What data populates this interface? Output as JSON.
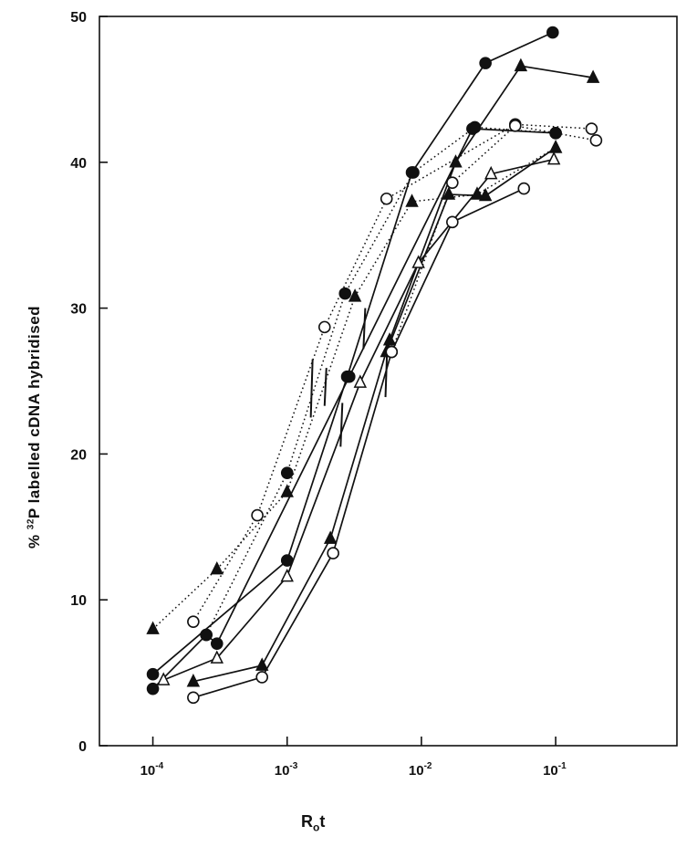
{
  "chart_data": {
    "type": "line",
    "xscale": "log",
    "xlim": [
      4e-05,
      0.8
    ],
    "ylim": [
      0,
      50
    ],
    "yticks": [
      0,
      10,
      20,
      30,
      40,
      50
    ],
    "xticks": [
      {
        "value": 0.0001,
        "base": "10",
        "exp": "-4"
      },
      {
        "value": 0.001,
        "base": "10",
        "exp": "-3"
      },
      {
        "value": 0.01,
        "base": "10",
        "exp": "-2"
      },
      {
        "value": 0.1,
        "base": "10",
        "exp": "-1"
      }
    ],
    "ylabel_prefix": "% ",
    "ylabel_sup": "32",
    "ylabel_main": "P labelled cDNA hybridised",
    "xlabel_main": "R",
    "xlabel_sub": "o",
    "xlabel_tail": "t",
    "grid": false,
    "series": [
      {
        "marker": "filled-circle",
        "linestyle": "solid",
        "points": [
          [
            0.0001,
            4.9
          ],
          [
            0.001,
            12.7
          ],
          [
            0.0028,
            25.3
          ],
          [
            0.0085,
            39.3
          ],
          [
            0.03,
            46.8
          ],
          [
            0.095,
            48.9
          ]
        ]
      },
      {
        "marker": "filled-triangle",
        "linestyle": "solid",
        "points": [
          [
            0.0002,
            4.4
          ],
          [
            0.00065,
            5.5
          ],
          [
            0.0021,
            14.2
          ],
          [
            0.0058,
            27.8
          ],
          [
            0.018,
            40.0
          ],
          [
            0.055,
            46.6
          ],
          [
            0.19,
            45.8
          ]
        ]
      },
      {
        "marker": "filled-circle",
        "linestyle": "solid",
        "points": [
          [
            0.0001,
            3.9
          ],
          [
            0.00025,
            7.6
          ],
          [
            0.0003,
            7.0
          ],
          [
            0.0029,
            25.3
          ],
          [
            0.024,
            42.3
          ],
          [
            0.1,
            42.0
          ]
        ]
      },
      {
        "marker": "open-circle",
        "linestyle": "solid",
        "points": [
          [
            0.0002,
            3.3
          ],
          [
            0.00065,
            4.7
          ],
          [
            0.0022,
            13.2
          ],
          [
            0.006,
            27.0
          ],
          [
            0.017,
            35.9
          ],
          [
            0.058,
            38.2
          ]
        ]
      },
      {
        "marker": "open-triangle",
        "linestyle": "solid",
        "points": [
          [
            0.00012,
            4.5
          ],
          [
            0.0003,
            6.0
          ],
          [
            0.001,
            11.6
          ],
          [
            0.0035,
            24.9
          ],
          [
            0.0095,
            33.1
          ],
          [
            0.033,
            39.2
          ],
          [
            0.097,
            40.2
          ]
        ]
      },
      {
        "marker": "filled-triangle",
        "linestyle": "solid",
        "points": [
          [
            0.0055,
            27.0
          ],
          [
            0.016,
            37.8
          ],
          [
            0.03,
            37.7
          ],
          [
            0.1,
            41.0
          ]
        ]
      },
      {
        "marker": "filled-triangle",
        "linestyle": "dotted",
        "points": [
          [
            0.0001,
            8.0
          ],
          [
            0.0003,
            12.1
          ],
          [
            0.001,
            17.4
          ],
          [
            0.0032,
            30.8
          ],
          [
            0.0085,
            37.3
          ],
          [
            0.026,
            37.8
          ],
          [
            0.1,
            41.0
          ]
        ]
      },
      {
        "marker": "open-circle",
        "linestyle": "dotted",
        "points": [
          [
            0.0002,
            8.5
          ],
          [
            0.0006,
            15.8
          ],
          [
            0.0019,
            28.7
          ],
          [
            0.0055,
            37.5
          ],
          [
            0.05,
            42.6
          ],
          [
            0.185,
            42.3
          ]
        ]
      },
      {
        "marker": "filled-circle",
        "linestyle": "dotted",
        "points": [
          [
            0.00025,
            7.6
          ],
          [
            0.001,
            18.7
          ],
          [
            0.0027,
            31.0
          ],
          [
            0.0087,
            39.3
          ],
          [
            0.025,
            42.4
          ],
          [
            0.1,
            42.0
          ]
        ]
      },
      {
        "marker": "open-circle",
        "linestyle": "dotted",
        "points": [
          [
            0.006,
            27.0
          ],
          [
            0.017,
            38.6
          ],
          [
            0.05,
            42.5
          ],
          [
            0.2,
            41.5
          ]
        ]
      }
    ],
    "error_bars": [
      {
        "x": 0.0015,
        "y": 24.5,
        "half": 2.0
      },
      {
        "x": 0.0019,
        "y": 24.6,
        "half": 1.3
      },
      {
        "x": 0.0025,
        "y": 22.0,
        "half": 1.5
      },
      {
        "x": 0.0037,
        "y": 28.6,
        "half": 1.4
      },
      {
        "x": 0.0054,
        "y": 25.7,
        "half": 1.8
      }
    ]
  }
}
